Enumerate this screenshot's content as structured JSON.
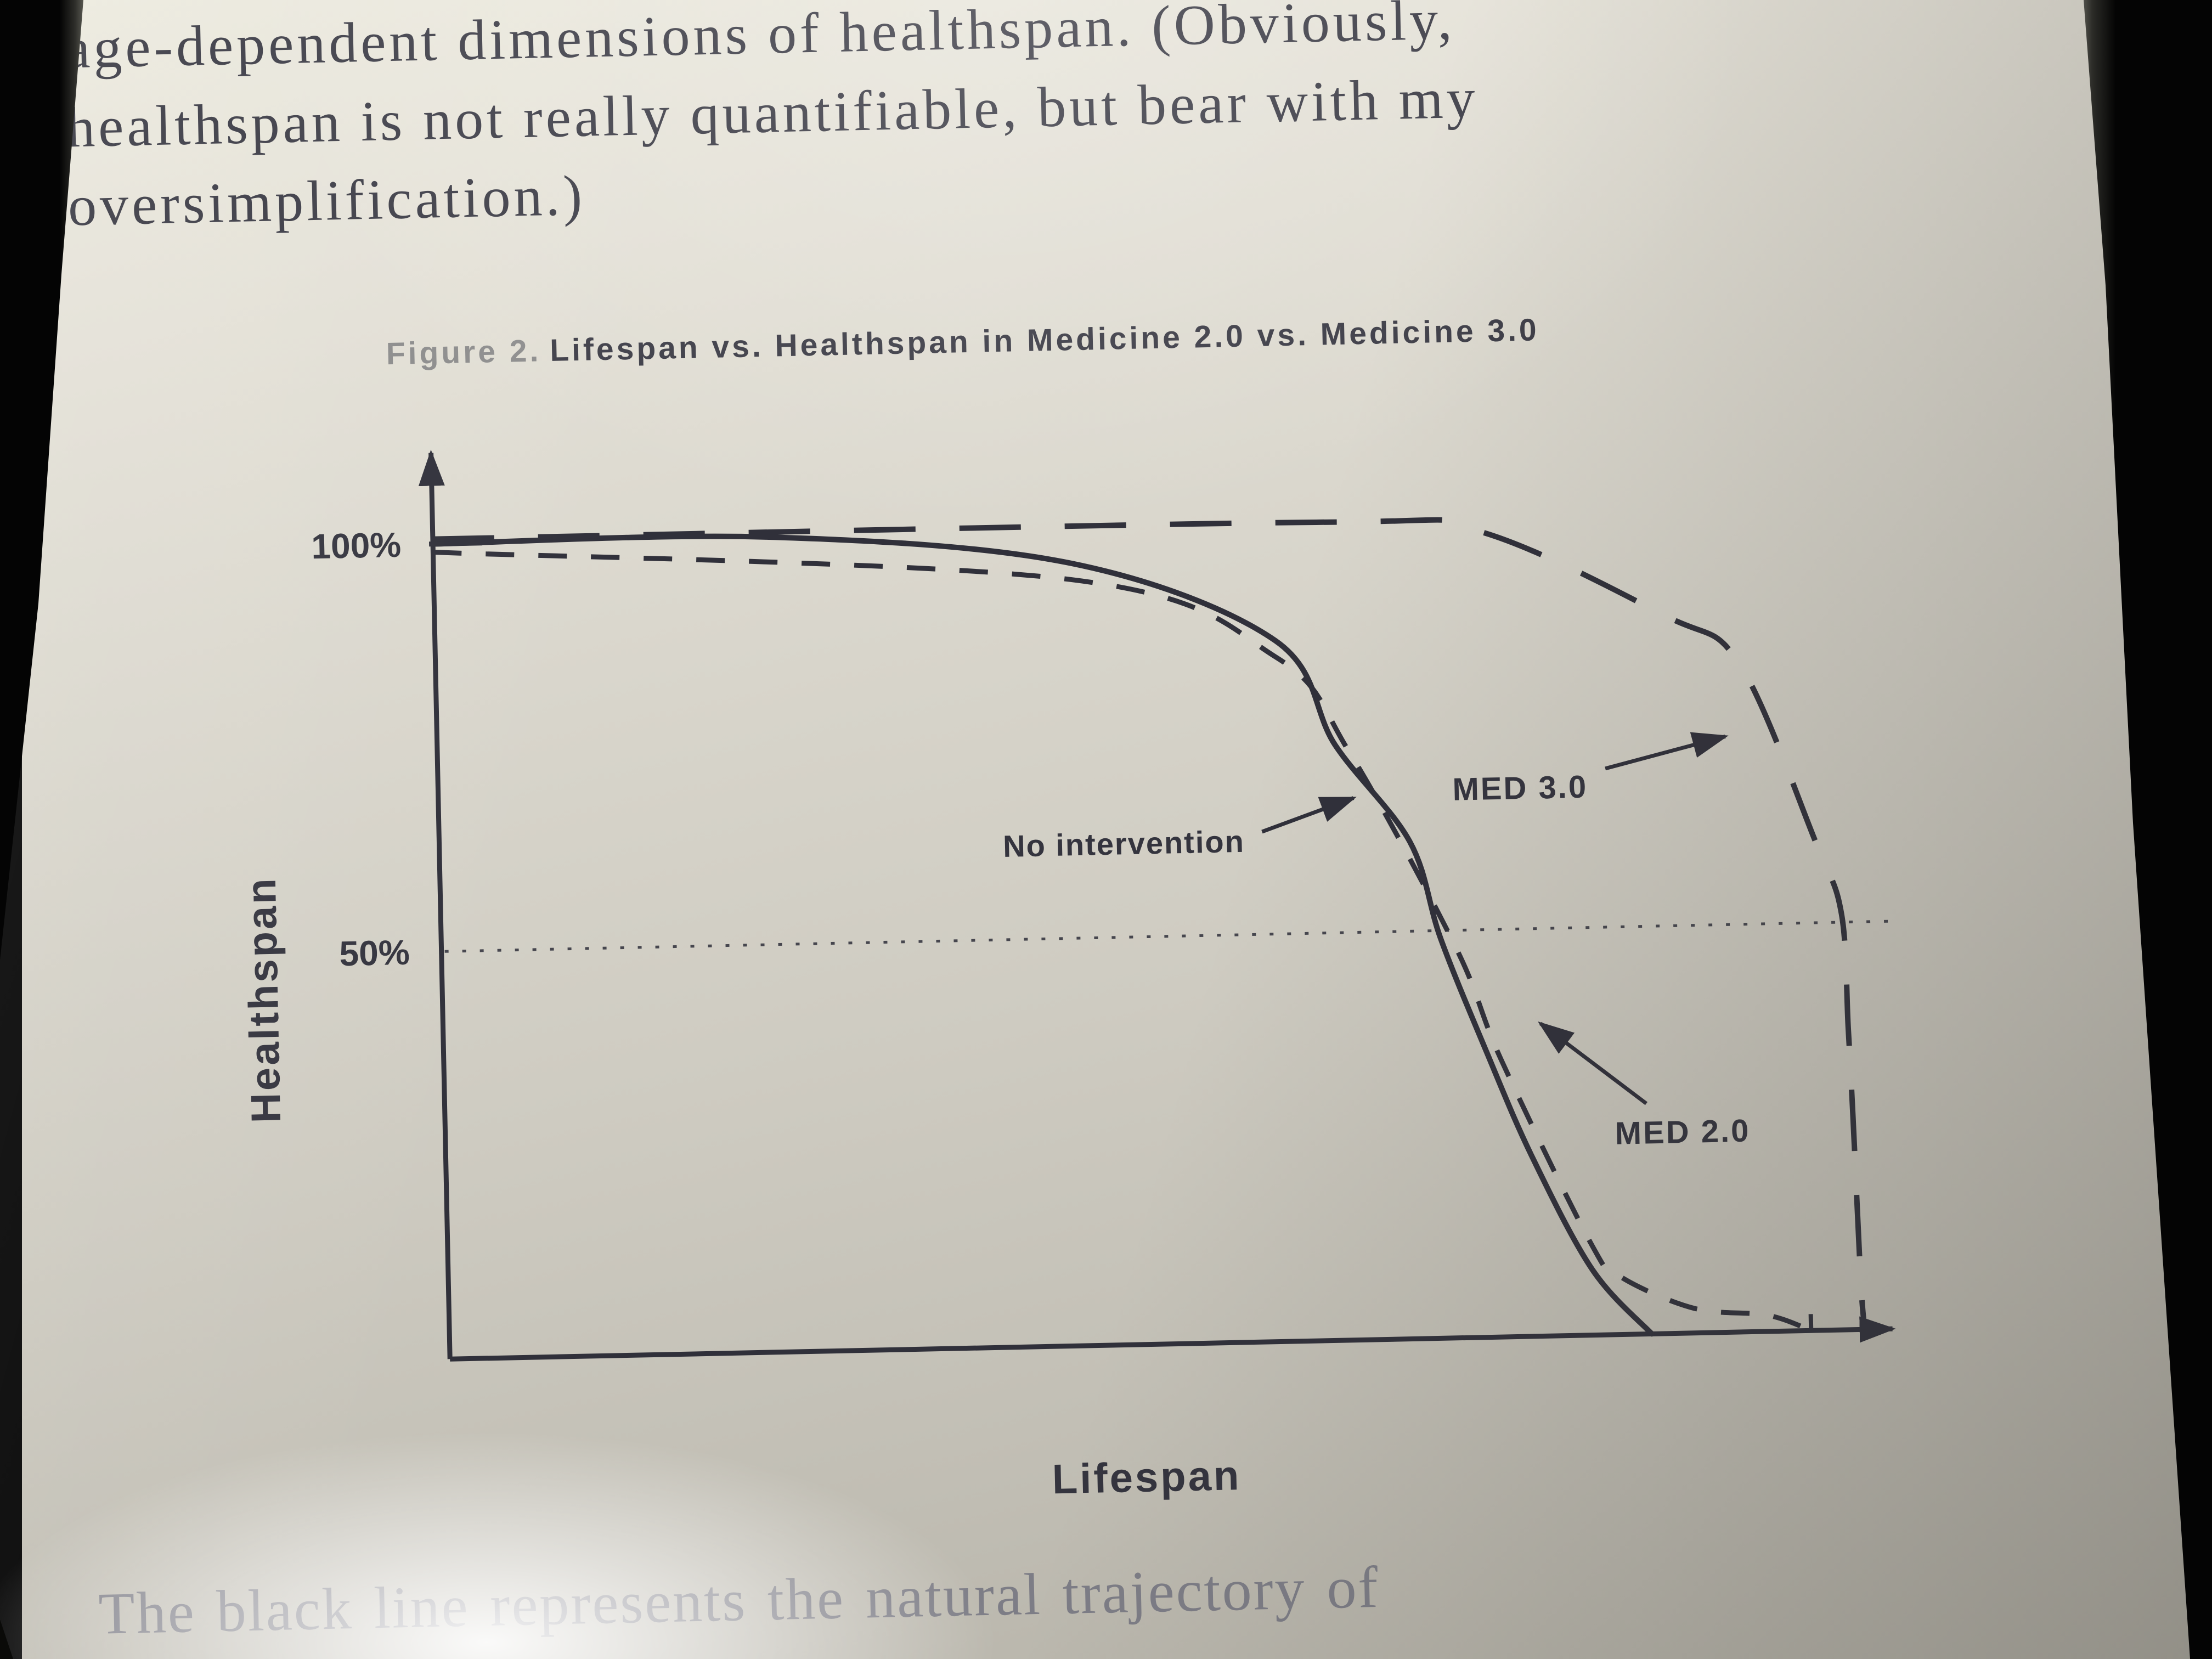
{
  "page": {
    "body_text_lines": [
      "age-dependent dimensions of healthspan. (Obviously,",
      "healthspan is not really quantifiable, but bear with my",
      "oversimplification.)"
    ],
    "figure_caption": {
      "prefix": "Figure 2.",
      "title": "Lifespan vs. Healthspan in Medicine 2.0 vs. Medicine 3.0"
    },
    "bottom_text_line": "The black line represents the natural trajectory of"
  },
  "chart_data": {
    "type": "line",
    "title": "Figure 2. Lifespan vs. Healthspan in Medicine 2.0 vs. Medicine 3.0",
    "xlabel": "Lifespan",
    "ylabel": "Healthspan",
    "x_axis": {
      "label": "Lifespan",
      "range": [
        0,
        100
      ],
      "numeric_scale_shown": false,
      "arrow": true
    },
    "y_axis": {
      "label": "Healthspan",
      "range": [
        0,
        100
      ],
      "arrow": true,
      "ticks": [
        {
          "value": 100,
          "label": "100%"
        },
        {
          "value": 50,
          "label": "50%"
        }
      ]
    },
    "reference_lines": [
      {
        "y": 50,
        "style": "dotted"
      }
    ],
    "grid": false,
    "legend_position": "inline annotations with arrows",
    "series": [
      {
        "name": "No intervention",
        "line_style": "solid",
        "x": [
          0,
          23,
          44,
          58,
          62,
          67,
          69,
          72,
          75,
          79,
          83
        ],
        "y": [
          100,
          100,
          96,
          86,
          73,
          61,
          49,
          35,
          22,
          8,
          0
        ]
      },
      {
        "name": "MED 2.0",
        "line_style": "short-dash",
        "x": [
          0,
          44,
          58,
          63,
          70,
          73,
          79,
          81,
          86,
          91,
          94
        ],
        "y": [
          99,
          94,
          84,
          72,
          48,
          34,
          11,
          7,
          3,
          2,
          0
        ]
      },
      {
        "name": "MED 3.0",
        "line_style": "long-dash",
        "x": [
          0,
          61,
          72,
          85,
          90,
          95,
          96.7,
          97,
          97.2,
          97.5,
          97.7
        ],
        "y": [
          100.6,
          100.4,
          99,
          88,
          82,
          60,
          51,
          37,
          26,
          6,
          0
        ]
      }
    ],
    "annotations": [
      {
        "label": "No intervention",
        "points_to": "solid curve"
      },
      {
        "label": "MED 3.0",
        "points_to": "long-dash curve"
      },
      {
        "label": "MED 2.0",
        "points_to": "short-dash curve"
      }
    ]
  },
  "colors": {
    "ink": "#3a3a44",
    "chart_line": "#30303a",
    "caption_prefix_gray": "#8c8c8c",
    "page_light": "#edebdf",
    "page_dark": "#b1aea4",
    "background_black": "#060606"
  }
}
